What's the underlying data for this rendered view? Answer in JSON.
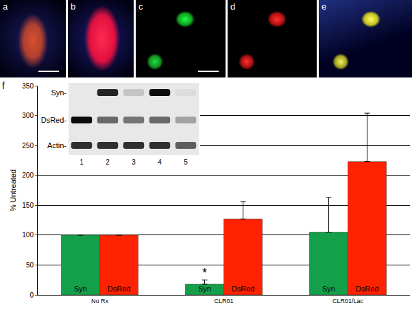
{
  "panels": {
    "labels": [
      "a",
      "b",
      "c",
      "d",
      "e"
    ]
  },
  "chart_data": {
    "type": "bar",
    "panel_label": "f",
    "y_label": "% Untreated",
    "categories": [
      "No Rx",
      "CLR01",
      "CLR01/Lac"
    ],
    "series": [
      {
        "name": "Syn",
        "color": "#14a04a",
        "values": [
          100,
          18,
          105
        ],
        "errors": [
          0,
          7,
          58
        ]
      },
      {
        "name": "DsRed",
        "color": "#ff2200",
        "values": [
          100,
          127,
          223
        ],
        "errors": [
          0,
          29,
          81
        ]
      }
    ],
    "ylim": [
      0,
      350
    ],
    "yticks": [
      0,
      50,
      100,
      150,
      200,
      250,
      300,
      350
    ],
    "grid": true,
    "annotations": [
      {
        "text": "*",
        "category": "CLR01",
        "series": "Syn"
      }
    ],
    "blot": {
      "rows": [
        "Syn-",
        "DsRed-",
        "Actin-"
      ],
      "lanes": [
        "1",
        "2",
        "3",
        "4",
        "5"
      ],
      "bands": [
        [
          0,
          0.85,
          0.15,
          0.95,
          0.05
        ],
        [
          0.95,
          0.55,
          0.5,
          0.55,
          0.3
        ],
        [
          0.8,
          0.8,
          0.8,
          0.8,
          0.6
        ]
      ]
    }
  }
}
